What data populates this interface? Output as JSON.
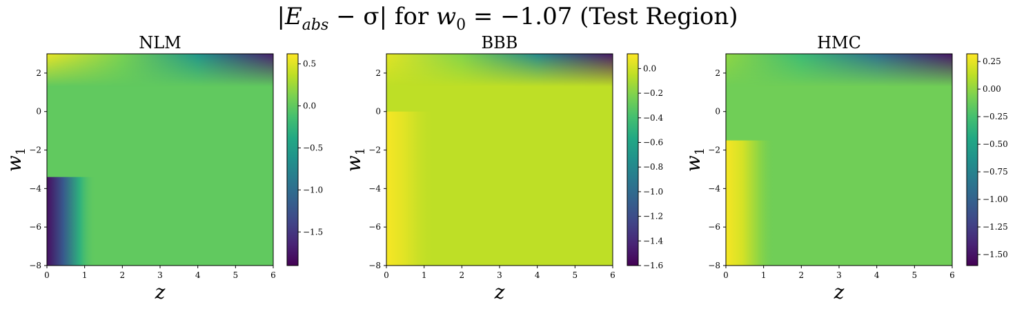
{
  "figure": {
    "title_main": "|E",
    "title_sub": "abs",
    "title_rest": " − σ| for ",
    "title_w": "w",
    "title_w_sub": "0",
    "title_eq": " = −1.07 (Test Region)"
  },
  "chart_data": [
    {
      "type": "heatmap",
      "title": "NLM",
      "xlabel": "z",
      "ylabel": "w",
      "ylabel_sub": "1",
      "xlim": [
        0,
        6
      ],
      "ylim": [
        -8,
        3
      ],
      "xticks": [
        "0",
        "1",
        "2",
        "3",
        "4",
        "5",
        "6"
      ],
      "yticks": [
        "−8",
        "−6",
        "−4",
        "−2",
        "0",
        "2"
      ],
      "colorbar": {
        "min": -1.9,
        "max": 0.62,
        "ticks": [
          0.5,
          0.0,
          -0.5,
          -1.0,
          -1.5
        ],
        "tick_labels": [
          "0.5",
          "0.0",
          "−0.5",
          "−1.0",
          "−1.5"
        ]
      },
      "colormap": "viridis"
    },
    {
      "type": "heatmap",
      "title": "BBB",
      "xlabel": "z",
      "ylabel": "w",
      "ylabel_sub": "1",
      "xlim": [
        0,
        6
      ],
      "ylim": [
        -8,
        3
      ],
      "xticks": [
        "0",
        "1",
        "2",
        "3",
        "4",
        "5",
        "6"
      ],
      "yticks": [
        "−8",
        "−6",
        "−4",
        "−2",
        "0",
        "2"
      ],
      "colorbar": {
        "min": -1.6,
        "max": 0.12,
        "ticks": [
          0.0,
          -0.2,
          -0.4,
          -0.6,
          -0.8,
          -1.0,
          -1.2,
          -1.4,
          -1.6
        ],
        "tick_labels": [
          "0.0",
          "−0.2",
          "−0.4",
          "−0.6",
          "−0.8",
          "−1.0",
          "−1.2",
          "−1.4",
          "−1.6"
        ]
      },
      "colormap": "viridis"
    },
    {
      "type": "heatmap",
      "title": "HMC",
      "xlabel": "z",
      "ylabel": "w",
      "ylabel_sub": "1",
      "xlim": [
        0,
        6
      ],
      "ylim": [
        -8,
        3
      ],
      "xticks": [
        "0",
        "1",
        "2",
        "3",
        "4",
        "5",
        "6"
      ],
      "yticks": [
        "−8",
        "−6",
        "−4",
        "−2",
        "0",
        "2"
      ],
      "colorbar": {
        "min": -1.6,
        "max": 0.32,
        "ticks": [
          0.25,
          0.0,
          -0.25,
          -0.5,
          -0.75,
          -1.0,
          -1.25,
          -1.5
        ],
        "tick_labels": [
          "0.25",
          "0.00",
          "−0.25",
          "−0.50",
          "−0.75",
          "−1.00",
          "−1.25",
          "−1.50"
        ]
      },
      "colormap": "viridis"
    }
  ]
}
